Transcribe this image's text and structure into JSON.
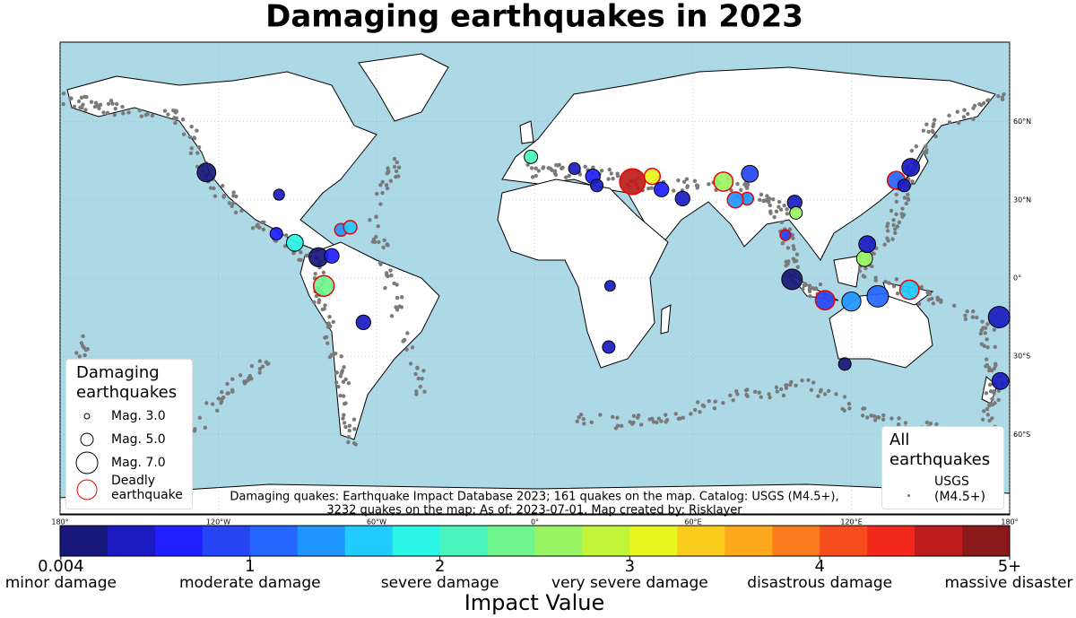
{
  "title": "Damaging earthquakes in 2023",
  "map": {
    "lonlim": [
      -180,
      180
    ],
    "latlim": [
      -90,
      90
    ],
    "lon_ticks": [
      {
        "value": -180,
        "label": "180°"
      },
      {
        "value": -120,
        "label": "120°W"
      },
      {
        "value": -60,
        "label": "60°W"
      },
      {
        "value": 0,
        "label": "0°"
      },
      {
        "value": 60,
        "label": "60°E"
      },
      {
        "value": 120,
        "label": "120°E"
      },
      {
        "value": 180,
        "label": "180°"
      }
    ],
    "lat_ticks": [
      {
        "value": 60,
        "label": "60°N"
      },
      {
        "value": 30,
        "label": "30°N"
      },
      {
        "value": 0,
        "label": "0°"
      },
      {
        "value": -30,
        "label": "30°S"
      },
      {
        "value": -60,
        "label": "60°S"
      }
    ]
  },
  "quakes": [
    {
      "lon": 37.0,
      "lat": 37.0,
      "magnitude": 7.8,
      "impact": 4.6,
      "deadly": true
    },
    {
      "lon": 44.5,
      "lat": 39.0,
      "magnitude": 5.8,
      "impact": 3.0,
      "deadly": true
    },
    {
      "lon": 71.5,
      "lat": 37.0,
      "magnitude": 6.5,
      "impact": 2.6,
      "deadly": true
    },
    {
      "lon": 81.5,
      "lat": 40.0,
      "magnitude": 6.0,
      "impact": 0.9,
      "deadly": false
    },
    {
      "lon": 142.5,
      "lat": 42.5,
      "magnitude": 6.2,
      "impact": 0.3,
      "deadly": false
    },
    {
      "lon": 137.0,
      "lat": 37.5,
      "magnitude": 6.2,
      "impact": 1.0,
      "deadly": true
    },
    {
      "lon": 140.0,
      "lat": 35.5,
      "magnitude": 5.0,
      "impact": 0.3,
      "deadly": false
    },
    {
      "lon": 125.0,
      "lat": 7.5,
      "magnitude": 5.8,
      "impact": 2.5,
      "deadly": false
    },
    {
      "lon": 126.0,
      "lat": 13.0,
      "magnitude": 6.0,
      "impact": 0.3,
      "deadly": false
    },
    {
      "lon": 110.0,
      "lat": -8.5,
      "magnitude": 6.5,
      "impact": 0.9,
      "deadly": true
    },
    {
      "lon": 130.0,
      "lat": -7.0,
      "magnitude": 7.0,
      "impact": 1.2,
      "deadly": false
    },
    {
      "lon": 142.0,
      "lat": -4.5,
      "magnitude": 6.5,
      "impact": 1.5,
      "deadly": true
    },
    {
      "lon": 97.5,
      "lat": -0.5,
      "magnitude": 6.8,
      "impact": 0.2,
      "deadly": false
    },
    {
      "lon": 176.0,
      "lat": -15.0,
      "magnitude": 7.0,
      "impact": 0.3,
      "deadly": false
    },
    {
      "lon": 176.5,
      "lat": -39.5,
      "magnitude": 6.0,
      "impact": 0.4,
      "deadly": false
    },
    {
      "lon": -80.0,
      "lat": -3.0,
      "magnitude": 6.8,
      "impact": 2.4,
      "deadly": true
    },
    {
      "lon": -73.5,
      "lat": 18.5,
      "magnitude": 5.0,
      "impact": 1.3,
      "deadly": true
    },
    {
      "lon": -91.0,
      "lat": 13.5,
      "magnitude": 6.0,
      "impact": 1.9,
      "deadly": false
    },
    {
      "lon": -82.0,
      "lat": 8.0,
      "magnitude": 6.5,
      "impact": 0.2,
      "deadly": false
    },
    {
      "lon": -77.0,
      "lat": 8.5,
      "magnitude": 5.5,
      "impact": 0.6,
      "deadly": false
    },
    {
      "lon": -1.5,
      "lat": 46.5,
      "magnitude": 5.2,
      "impact": 2.1,
      "deadly": false
    },
    {
      "lon": 98.5,
      "lat": 29.0,
      "magnitude": 5.5,
      "impact": 0.3,
      "deadly": false
    },
    {
      "lon": 99.0,
      "lat": 25.0,
      "magnitude": 5.0,
      "impact": 2.6,
      "deadly": false
    },
    {
      "lon": 95.0,
      "lat": 16.5,
      "magnitude": 4.5,
      "impact": 0.8,
      "deadly": true
    },
    {
      "lon": 80.5,
      "lat": 30.5,
      "magnitude": 5.0,
      "impact": 1.3,
      "deadly": true
    },
    {
      "lon": -124.5,
      "lat": 40.5,
      "magnitude": 6.4,
      "impact": 0.2,
      "deadly": false
    },
    {
      "lon": -65.0,
      "lat": -17.0,
      "magnitude": 5.5,
      "impact": 0.4,
      "deadly": false
    },
    {
      "lon": 28.0,
      "lat": -26.5,
      "magnitude": 5.0,
      "impact": 0.3,
      "deadly": false
    },
    {
      "lon": 28.5,
      "lat": -3.0,
      "magnitude": 4.5,
      "impact": 0.3,
      "deadly": false
    },
    {
      "lon": 117.5,
      "lat": -33.0,
      "magnitude": 5.0,
      "impact": 0.2,
      "deadly": false
    },
    {
      "lon": 22.0,
      "lat": 39.0,
      "magnitude": 5.5,
      "impact": 0.6,
      "deadly": false
    },
    {
      "lon": 15.0,
      "lat": 42.0,
      "magnitude": 4.8,
      "impact": 0.4,
      "deadly": false
    },
    {
      "lon": 23.5,
      "lat": 35.5,
      "magnitude": 5.0,
      "impact": 0.3,
      "deadly": false
    },
    {
      "lon": 56.0,
      "lat": 30.5,
      "magnitude": 5.5,
      "impact": 0.3,
      "deadly": false
    },
    {
      "lon": 48.0,
      "lat": 34.0,
      "magnitude": 5.5,
      "impact": 0.5,
      "deadly": false
    },
    {
      "lon": 76.0,
      "lat": 30.0,
      "magnitude": 5.8,
      "impact": 1.4,
      "deadly": true
    },
    {
      "lon": 120.0,
      "lat": -9.0,
      "magnitude": 6.5,
      "impact": 1.4,
      "deadly": false
    },
    {
      "lon": -70.0,
      "lat": 19.5,
      "magnitude": 5.2,
      "impact": 1.5,
      "deadly": true
    },
    {
      "lon": -98.0,
      "lat": 17.0,
      "magnitude": 5.0,
      "impact": 0.5,
      "deadly": false
    },
    {
      "lon": -97.0,
      "lat": 32.0,
      "magnitude": 4.6,
      "impact": 0.3,
      "deadly": false
    }
  ],
  "colorbar": {
    "lim": [
      0,
      5
    ],
    "colors": [
      "#17187a",
      "#1a1bc2",
      "#1f1fff",
      "#2545f5",
      "#2566ff",
      "#1f95ff",
      "#1fcbff",
      "#2bf5e6",
      "#4af4bd",
      "#6ff58e",
      "#9af564",
      "#c2f53a",
      "#e8f51f",
      "#fccc1c",
      "#fca81a",
      "#fb7c1c",
      "#f74d1d",
      "#f2281d",
      "#bc1c1c",
      "#8a1a1a"
    ],
    "ticks": [
      0.004,
      1,
      2,
      3,
      4,
      {
        "value": 5,
        "label": "5+"
      }
    ],
    "tick_descriptions": [
      "minor damage",
      "moderate damage",
      "severe damage",
      "very severe damage",
      "disastrous damage",
      "massive disaster"
    ],
    "label": "Impact Value"
  },
  "legend_left": {
    "title": "Damaging earthquakes",
    "items": [
      {
        "label": "Mag. 3.0",
        "magnitude": 3
      },
      {
        "label": "Mag. 5.0",
        "magnitude": 5
      },
      {
        "label": "Mag. 7.0",
        "magnitude": 7
      }
    ],
    "deadly": "Deadly earthquake"
  },
  "legend_right": {
    "title": "All earthquakes",
    "item": "USGS (M4.5+)"
  },
  "note": [
    "Damaging quakes: Earthquake Impact Database 2023; 161 quakes on the map. Catalog: USGS (M4.5+),",
    "3232 quakes on the map; As of: 2023-07-01. Map created by: Risklayer"
  ]
}
